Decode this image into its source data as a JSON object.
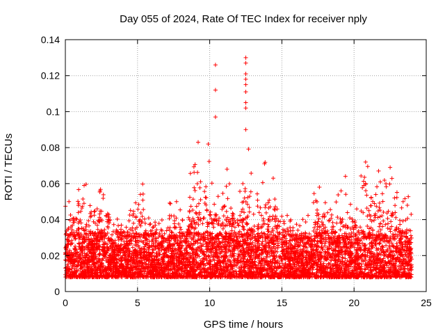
{
  "chart_data": {
    "type": "scatter",
    "title": "Day 055 of 2024, Rate Of TEC Index for receiver nply",
    "xlabel": "GPS time / hours",
    "ylabel": "ROTI / TECUs",
    "xlim": [
      0,
      25
    ],
    "ylim": [
      0,
      0.14
    ],
    "xticks": [
      0,
      5,
      10,
      15,
      20,
      25
    ],
    "yticks": [
      0,
      0.02,
      0.04,
      0.06,
      0.08,
      0.1,
      0.12,
      0.14
    ],
    "xtick_labels": [
      "0",
      "5",
      "10",
      "15",
      "20",
      "25"
    ],
    "ytick_labels": [
      "0",
      "0.02",
      "0.04",
      "0.06",
      "0.08",
      "0.1",
      "0.12",
      "0.14"
    ],
    "grid": true,
    "marker": "+",
    "series": [
      {
        "name": "ROTI",
        "color": "#ff0000",
        "data_range_hours": [
          0,
          24
        ],
        "baseline_range": [
          0.005,
          0.03
        ],
        "peaks": [
          {
            "x": 0.25,
            "y": 0.05
          },
          {
            "x": 1.3,
            "y": 0.059
          },
          {
            "x": 2.4,
            "y": 0.056
          },
          {
            "x": 5.2,
            "y": 0.054
          },
          {
            "x": 7.7,
            "y": 0.05
          },
          {
            "x": 9.2,
            "y": 0.083
          },
          {
            "x": 9.9,
            "y": 0.082
          },
          {
            "x": 10.4,
            "y": 0.126
          },
          {
            "x": 10.4,
            "y": 0.112
          },
          {
            "x": 10.4,
            "y": 0.097
          },
          {
            "x": 11.2,
            "y": 0.068
          },
          {
            "x": 12.5,
            "y": 0.13
          },
          {
            "x": 12.5,
            "y": 0.127
          },
          {
            "x": 12.5,
            "y": 0.121
          },
          {
            "x": 12.5,
            "y": 0.118
          },
          {
            "x": 12.5,
            "y": 0.115
          },
          {
            "x": 12.5,
            "y": 0.111
          },
          {
            "x": 12.5,
            "y": 0.105
          },
          {
            "x": 12.5,
            "y": 0.102
          },
          {
            "x": 12.5,
            "y": 0.09
          },
          {
            "x": 13.8,
            "y": 0.071
          },
          {
            "x": 14.4,
            "y": 0.063
          },
          {
            "x": 17.6,
            "y": 0.058
          },
          {
            "x": 19.1,
            "y": 0.056
          },
          {
            "x": 20.8,
            "y": 0.072
          },
          {
            "x": 21.7,
            "y": 0.067
          },
          {
            "x": 22.5,
            "y": 0.069
          },
          {
            "x": 23.4,
            "y": 0.05
          }
        ]
      }
    ]
  }
}
